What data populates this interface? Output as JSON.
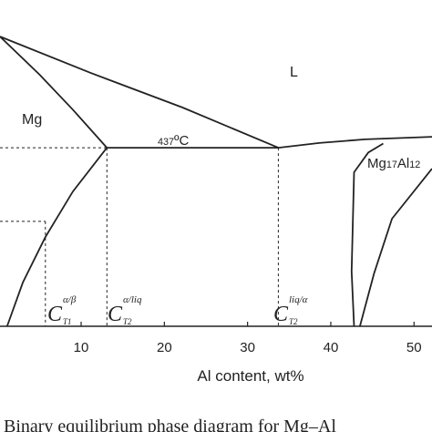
{
  "chart_data": {
    "type": "line",
    "xlim": [
      0.25,
      52.16
    ],
    "ylim": [
      95,
      720
    ],
    "xticks": [
      10,
      20,
      30,
      40,
      50
    ],
    "xlabel": "Al content, wt%",
    "caption": "Binary equilibrium phase diagram for Mg–Al",
    "color": "#222222",
    "series": [
      {
        "x": [
          0.25,
          5.0,
          9.0,
          13.1
        ],
        "values": [
          650,
          577,
          510,
          437
        ],
        "dashed": false
      },
      {
        "x": [
          0.25,
          11.2,
          22.2,
          33.7
        ],
        "values": [
          650,
          580,
          514,
          437
        ],
        "dashed": false
      },
      {
        "x": [
          33.7,
          38.6,
          44.1,
          52.16
        ],
        "values": [
          437,
          446,
          453,
          458
        ],
        "dashed": false
      },
      {
        "x": [
          13.1,
          33.7
        ],
        "values": [
          437,
          437
        ],
        "dashed": false
      },
      {
        "x": [
          13.1,
          9.0,
          5.7,
          3.0,
          1.1
        ],
        "values": [
          437,
          353,
          266,
          179,
          95
        ],
        "dashed": false
      },
      {
        "x": [
          42.8,
          42.5,
          42.8,
          44.5,
          46.3
        ],
        "values": [
          95,
          200,
          390,
          428,
          445
        ],
        "dashed": false
      },
      {
        "x": [
          43.5,
          45.2,
          47.35,
          52.16
        ],
        "values": [
          95,
          196,
          301,
          397
        ],
        "dashed": false
      },
      {
        "x": [
          0.25,
          13.1
        ],
        "values": [
          437,
          437
        ],
        "dashed": true
      },
      {
        "x": [
          13.1,
          13.1
        ],
        "values": [
          437,
          95
        ],
        "dashed": true
      },
      {
        "x": [
          33.7,
          33.7
        ],
        "values": [
          437,
          95
        ],
        "dashed": true
      },
      {
        "x": [
          0.25,
          5.7
        ],
        "values": [
          296,
          296
        ],
        "dashed": true
      },
      {
        "x": [
          5.7,
          5.7
        ],
        "values": [
          296,
          95
        ],
        "dashed": true
      }
    ],
    "annotations": [
      "L",
      "Mg",
      "437ºC",
      "Mg17Al12"
    ],
    "compositions": [
      {
        "base": "C",
        "sup": "α/β",
        "sub": "T1"
      },
      {
        "base": "C",
        "sup": "α/liq",
        "sub": "T2"
      },
      {
        "base": "C",
        "sup": "liq/α",
        "sub": "T2"
      }
    ]
  }
}
